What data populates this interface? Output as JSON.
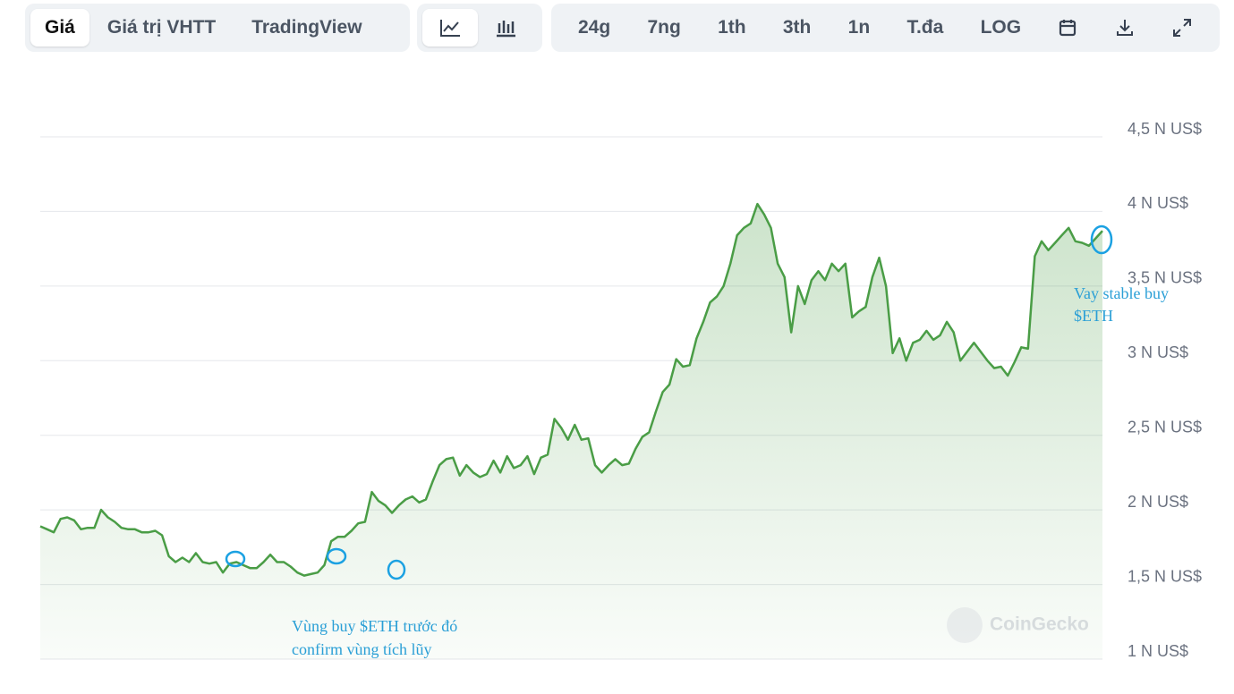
{
  "toolbar": {
    "views": [
      "Giá",
      "Giá trị VHTT",
      "TradingView"
    ],
    "ranges": [
      "24g",
      "7ng",
      "1th",
      "3th",
      "1n",
      "T.đa",
      "LOG"
    ]
  },
  "chart_data": {
    "type": "line",
    "color": "#4a9d46",
    "grid": true,
    "ylim": [
      1000,
      4500
    ],
    "yticks": [
      {
        "value": 1000,
        "label": "1 N US$"
      },
      {
        "value": 1500,
        "label": "1,5 N US$"
      },
      {
        "value": 2000,
        "label": "2 N US$"
      },
      {
        "value": 2500,
        "label": "2,5 N US$"
      },
      {
        "value": 3000,
        "label": "3 N US$"
      },
      {
        "value": 3500,
        "label": "3,5 N US$"
      },
      {
        "value": 4000,
        "label": "4 N US$"
      },
      {
        "value": 4500,
        "label": "4,5 N US$"
      }
    ],
    "values": [
      1890,
      1870,
      1850,
      1940,
      1950,
      1930,
      1870,
      1880,
      1880,
      2000,
      1950,
      1920,
      1880,
      1870,
      1870,
      1850,
      1850,
      1860,
      1830,
      1690,
      1650,
      1680,
      1650,
      1710,
      1650,
      1640,
      1650,
      1580,
      1640,
      1650,
      1630,
      1610,
      1610,
      1650,
      1700,
      1650,
      1650,
      1620,
      1580,
      1560,
      1570,
      1580,
      1630,
      1790,
      1820,
      1820,
      1860,
      1910,
      1920,
      2120,
      2060,
      2030,
      1980,
      2030,
      2070,
      2090,
      2050,
      2070,
      2190,
      2300,
      2340,
      2350,
      2230,
      2300,
      2250,
      2220,
      2240,
      2330,
      2250,
      2360,
      2280,
      2300,
      2360,
      2240,
      2350,
      2370,
      2610,
      2550,
      2470,
      2570,
      2470,
      2480,
      2300,
      2250,
      2300,
      2340,
      2300,
      2310,
      2410,
      2490,
      2520,
      2660,
      2790,
      2840,
      3010,
      2960,
      2970,
      3150,
      3260,
      3390,
      3430,
      3500,
      3650,
      3840,
      3890,
      3920,
      4050,
      3980,
      3890,
      3650,
      3560,
      3190,
      3500,
      3380,
      3540,
      3600,
      3540,
      3650,
      3600,
      3650,
      3290,
      3330,
      3360,
      3560,
      3690,
      3500,
      3050,
      3150,
      3000,
      3120,
      3140,
      3200,
      3140,
      3170,
      3260,
      3190,
      3000,
      3060,
      3120,
      3060,
      3000,
      2950,
      2960,
      2900,
      2990,
      3090,
      3080,
      3700,
      3800,
      3740,
      3790,
      3840,
      3890,
      3800,
      3790,
      3770,
      3820,
      3870
    ],
    "annotations": [
      "Vùng buy $ETH trước đó",
      "confirm vùng tích lũy",
      "Vay stable buy",
      "$ETH"
    ],
    "watermark": "CoinGecko"
  }
}
